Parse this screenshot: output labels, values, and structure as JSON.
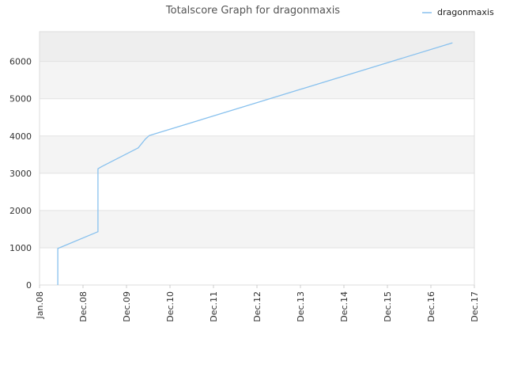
{
  "chart_data": {
    "type": "line",
    "title": "Totalscore Graph for dragonmaxis",
    "xlabel": "",
    "ylabel": "",
    "grid": true,
    "legend_position": "top-right",
    "x_ticks": [
      "Jan.08",
      "Dec.08",
      "Dec.09",
      "Dec.10",
      "Dec.11",
      "Dec.12",
      "Dec.13",
      "Dec.14",
      "Dec.15",
      "Dec.16",
      "Dec.17"
    ],
    "xlim": [
      "2008-01",
      "2017-12"
    ],
    "y_ticks": [
      0,
      1000,
      2000,
      3000,
      4000,
      5000,
      6000
    ],
    "ylim": [
      0,
      6800
    ],
    "series": [
      {
        "name": "dragonmaxis",
        "color": "#88c1ee",
        "points": [
          [
            "2008-06",
            0
          ],
          [
            "2008-06",
            980
          ],
          [
            "2009-05",
            1430
          ],
          [
            "2009-05",
            3120
          ],
          [
            "2009-06",
            3180
          ],
          [
            "2010-04",
            3680
          ],
          [
            "2010-06",
            3920
          ],
          [
            "2010-07",
            4010
          ],
          [
            "2017-06",
            6500
          ]
        ]
      }
    ]
  }
}
